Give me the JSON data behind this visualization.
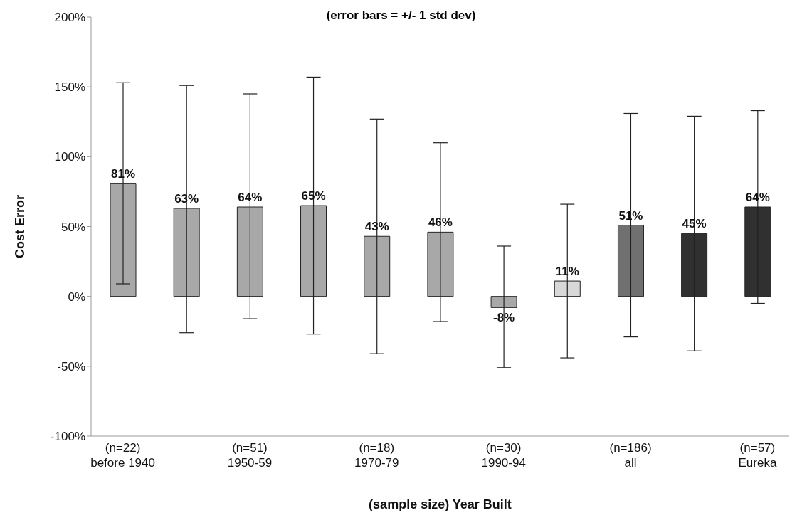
{
  "chart_data": {
    "type": "bar",
    "title": "(error bars = +/- 1 std dev)",
    "xlabel": "(sample size) Year Built",
    "ylabel": "Cost Error",
    "categories": [
      "(n=22)\nbefore 1940",
      null,
      "(n=51)\n1950-59",
      null,
      "(n=18)\n1970-79",
      null,
      "(n=30)\n1990-94",
      null,
      "(n=186)\nall",
      null,
      "(n=57)\nEureka"
    ],
    "values": [
      81,
      63,
      64,
      65,
      43,
      46,
      -8,
      11,
      51,
      45,
      64
    ],
    "value_labels": [
      "81%",
      "63%",
      "64%",
      "65%",
      "43%",
      "46%",
      "-8%",
      "11%",
      "51%",
      "45%",
      "64%"
    ],
    "errors": [
      [
        9,
        153
      ],
      [
        -26,
        151
      ],
      [
        -16,
        145
      ],
      [
        -27,
        157
      ],
      [
        -41,
        127
      ],
      [
        -18,
        110
      ],
      [
        -51,
        36
      ],
      [
        -44,
        66
      ],
      [
        -29,
        131
      ],
      [
        -39,
        129
      ],
      [
        -5,
        133
      ]
    ],
    "colors": [
      "#a8a8a8",
      "#a8a8a8",
      "#a8a8a8",
      "#a8a8a8",
      "#a8a8a8",
      "#a8a8a8",
      "#a8a8a8",
      "#d8d8d8",
      "#707070",
      "#303030",
      "#303030"
    ],
    "ylim": [
      -100,
      200
    ],
    "yticks": [
      {
        "value": -100,
        "label": "-100%"
      },
      {
        "value": -50,
        "label": "-50%"
      },
      {
        "value": 0,
        "label": "0%"
      },
      {
        "value": 50,
        "label": "50%"
      },
      {
        "value": 100,
        "label": "100%"
      },
      {
        "value": 150,
        "label": "150%"
      },
      {
        "value": 200,
        "label": "200%"
      }
    ],
    "grid": false,
    "legend": false
  }
}
